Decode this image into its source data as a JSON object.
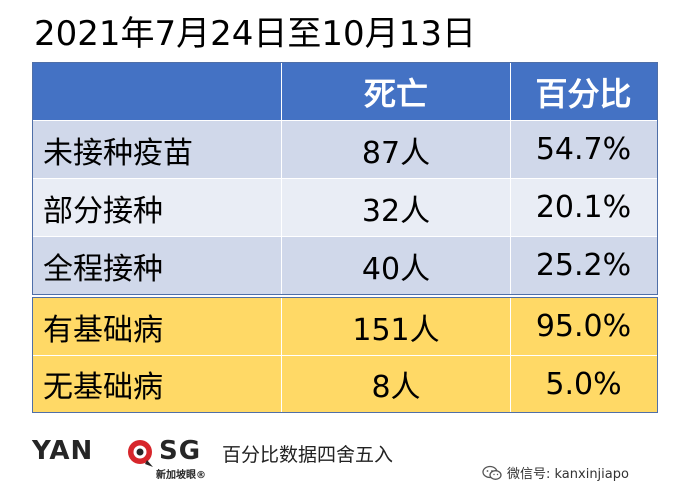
{
  "title": "2021年7月24日至10月13日",
  "table": {
    "headers": [
      "",
      "死亡",
      "百分比"
    ],
    "vaccination_rows": [
      {
        "category": "未接种疫苗",
        "deaths": "87人",
        "percent": "54.7%"
      },
      {
        "category": "部分接种",
        "deaths": "32人",
        "percent": "20.1%"
      },
      {
        "category": "全程接种",
        "deaths": "40人",
        "percent": "25.2%"
      }
    ],
    "condition_rows": [
      {
        "category": "有基础病",
        "deaths": "151人",
        "percent": "95.0%"
      },
      {
        "category": "无基础病",
        "deaths": "8人",
        "percent": "5.0%"
      }
    ]
  },
  "footer": {
    "logo_left": "YAN",
    "logo_right": "SG",
    "logo_sub": "新加坡眼®",
    "note": "百分比数据四舍五入",
    "wechat": "微信号: kanxinjiapo"
  },
  "colors": {
    "header_blue": "#4472c4",
    "row_light_blue": "#d0d8ea",
    "row_lighter_blue": "#e9edf5",
    "row_yellow": "#ffd966",
    "logo_red": "#d7262b"
  }
}
